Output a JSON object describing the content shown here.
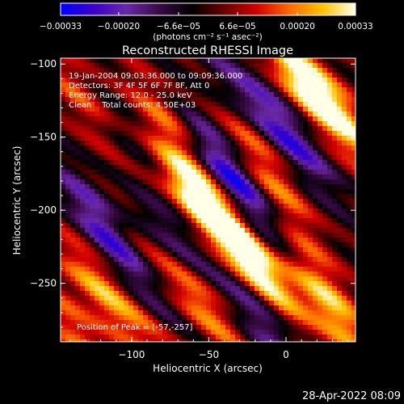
{
  "chart_data": {
    "type": "heatmap",
    "title": "Reconstructed RHESSI Image",
    "xlabel": "Heliocentric X (arcsec)",
    "ylabel": "Heliocentric Y (arcsec)",
    "xlim": [
      -146,
      45
    ],
    "ylim": [
      -290,
      -96
    ],
    "x_ticks": [
      {
        "value": -100,
        "label": "−100"
      },
      {
        "value": -50,
        "label": "−50"
      },
      {
        "value": 0,
        "label": "0"
      }
    ],
    "y_ticks": [
      {
        "value": -100,
        "label": "−100"
      },
      {
        "value": -150,
        "label": "−150"
      },
      {
        "value": -200,
        "label": "−200"
      },
      {
        "value": -250,
        "label": "−250"
      }
    ],
    "colorbar": {
      "range": [
        -0.00033,
        0.00033
      ],
      "tick_values": [
        -0.00033,
        -0.0002,
        -6.6e-05,
        6.6e-05,
        0.0002,
        0.00033
      ],
      "tick_labels": [
        "−0.00033",
        "−0.00020",
        "−6.6e−05",
        "6.6e−05",
        "0.00020",
        "0.00033"
      ],
      "unit_label": "(photons cm⁻² s⁻¹ asec⁻²)",
      "color_stops": [
        "#0000ff",
        "#3a00c8",
        "#6a28a8",
        "#3a0a46",
        "#000000",
        "#6a0000",
        "#d20000",
        "#ff6a00",
        "#ffc300",
        "#ffffe8"
      ]
    },
    "annotations": [
      "19-Jan-2004 09:03:36.000 to 09:09:36.000",
      "Detectors: 3F 4F 5F 6F 7F 8F, Att 0",
      "Energy Range: 12.0 - 25.0 keV",
      "Clean    Total counts: 4.50E+03"
    ],
    "peak_label": "Position of Peak = [-57,-257]",
    "peaks": [
      {
        "x": -55,
        "y": -195,
        "intensity": 1.0
      },
      {
        "x": -57,
        "y": -257,
        "intensity": 0.95
      },
      {
        "x": -95,
        "y": -178,
        "intensity": 0.8
      },
      {
        "x": 10,
        "y": -112,
        "intensity": 0.85
      },
      {
        "x": 32,
        "y": -132,
        "intensity": 0.8
      },
      {
        "x": -20,
        "y": -150,
        "intensity": 0.65
      },
      {
        "x": -35,
        "y": -215,
        "intensity": 0.7
      },
      {
        "x": -15,
        "y": -245,
        "intensity": 0.7
      },
      {
        "x": -5,
        "y": -195,
        "intensity": 0.6
      },
      {
        "x": 15,
        "y": -235,
        "intensity": 0.6
      },
      {
        "x": 30,
        "y": -270,
        "intensity": 0.7
      },
      {
        "x": -120,
        "y": -255,
        "intensity": 0.7
      },
      {
        "x": -135,
        "y": -285,
        "intensity": 0.55
      },
      {
        "x": -130,
        "y": -125,
        "intensity": 0.6
      },
      {
        "x": -75,
        "y": -140,
        "intensity": 0.55
      },
      {
        "x": -85,
        "y": -280,
        "intensity": 0.45
      },
      {
        "x": -100,
        "y": -225,
        "intensity": 0.45
      }
    ],
    "troughs": [
      {
        "x": -105,
        "y": -155,
        "intensity": 0.7
      },
      {
        "x": -118,
        "y": -210,
        "intensity": 0.85
      },
      {
        "x": -85,
        "y": -200,
        "intensity": 0.6
      },
      {
        "x": -45,
        "y": -165,
        "intensity": 0.6
      },
      {
        "x": -30,
        "y": -125,
        "intensity": 0.55
      },
      {
        "x": -25,
        "y": -190,
        "intensity": 0.55
      },
      {
        "x": 2,
        "y": -150,
        "intensity": 0.75
      },
      {
        "x": -15,
        "y": -275,
        "intensity": 0.6
      },
      {
        "x": -90,
        "y": -255,
        "intensity": 0.55
      },
      {
        "x": -65,
        "y": -235,
        "intensity": 0.5
      },
      {
        "x": 5,
        "y": -220,
        "intensity": 0.55
      }
    ]
  },
  "footer": {
    "date": "28-Apr-2022 08:09"
  }
}
